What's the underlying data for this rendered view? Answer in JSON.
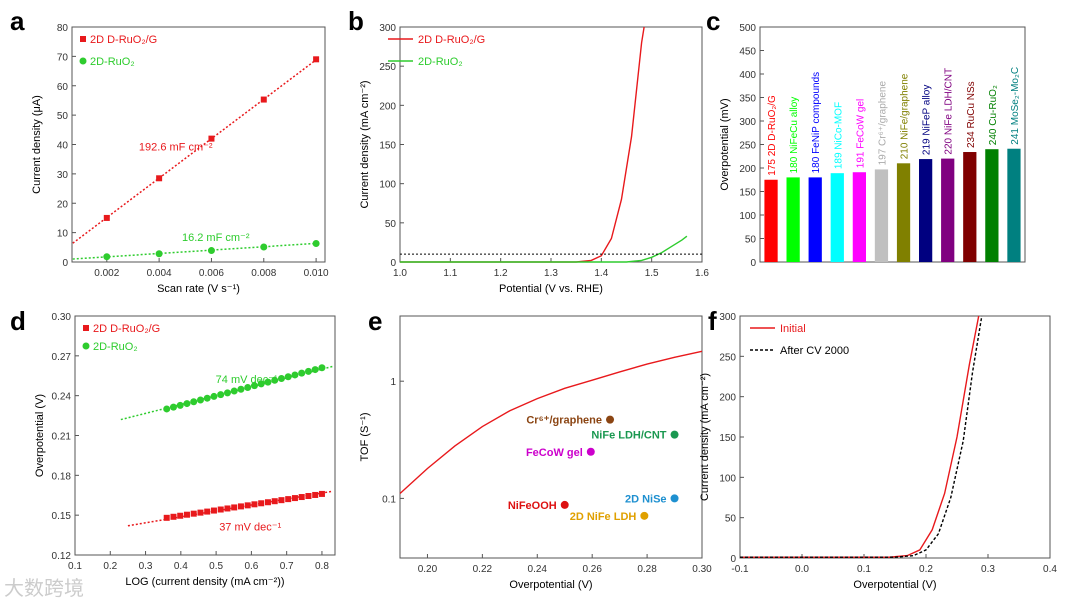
{
  "watermark": "大数跨境",
  "chart_data": [
    {
      "panel": "a",
      "type": "scatter",
      "xlabel": "Scan rate (V s⁻¹)",
      "ylabel": "Current density (μA)",
      "xlim": [
        0.00067,
        0.01034
      ],
      "ylim": [
        0,
        80
      ],
      "xticks": [
        0.002,
        0.004,
        0.006,
        0.008,
        0.01
      ],
      "xtick_labels": [
        "0.002",
        "0.004",
        "0.006",
        "0.008",
        "0.010"
      ],
      "yticks": [
        0,
        10,
        20,
        30,
        40,
        50,
        60,
        70,
        80
      ],
      "series": [
        {
          "name": "2D D-RuO₂/G",
          "color": "#e8191c",
          "marker": "square",
          "x": [
            0.002,
            0.004,
            0.006,
            0.008,
            0.01
          ],
          "y": [
            15,
            28.5,
            42,
            55.3,
            69
          ],
          "fit": [
            [
              0.0007,
              6.4
            ],
            [
              0.0101,
              69.5
            ]
          ],
          "annotation": "192.6 mF cm⁻²"
        },
        {
          "name": "2D-RuO₂",
          "color": "#2ecc2e",
          "marker": "circle",
          "x": [
            0.002,
            0.004,
            0.006,
            0.008,
            0.01
          ],
          "y": [
            1.8,
            2.8,
            3.9,
            5.1,
            6.3
          ],
          "fit": [
            [
              0.0007,
              1.0
            ],
            [
              0.0101,
              6.4
            ]
          ],
          "annotation": "16.2 mF cm⁻²"
        }
      ]
    },
    {
      "panel": "b",
      "type": "line",
      "xlabel": "Potential (V vs. RHE)",
      "ylabel": "Current density (mA cm⁻²)",
      "xlim": [
        1.0,
        1.6
      ],
      "ylim": [
        0,
        300
      ],
      "xticks": [
        1.0,
        1.1,
        1.2,
        1.3,
        1.4,
        1.5,
        1.6
      ],
      "xtick_labels": [
        "1.0",
        "1.1",
        "1.2",
        "1.3",
        "1.4",
        "1.5",
        "1.6"
      ],
      "yticks": [
        0,
        50,
        100,
        150,
        200,
        250,
        300
      ],
      "reference_line": 10,
      "series": [
        {
          "name": "2D D-RuO₂/G",
          "color": "#e8191c",
          "x": [
            1.0,
            1.35,
            1.38,
            1.4,
            1.42,
            1.44,
            1.46,
            1.47,
            1.48,
            1.485
          ],
          "y": [
            0,
            0,
            2,
            8,
            30,
            80,
            160,
            220,
            280,
            300
          ]
        },
        {
          "name": "2D-RuO₂",
          "color": "#2ecc2e",
          "x": [
            1.0,
            1.45,
            1.48,
            1.5,
            1.52,
            1.54,
            1.56,
            1.57
          ],
          "y": [
            0,
            0,
            2,
            6,
            12,
            20,
            28,
            33
          ]
        }
      ]
    },
    {
      "panel": "c",
      "type": "bar",
      "ylabel": "Overpotential (mV)",
      "ylim": [
        0,
        500
      ],
      "yticks": [
        0,
        50,
        100,
        150,
        200,
        250,
        300,
        350,
        400,
        450,
        500
      ],
      "categories": [
        "2D D-RuO₂/G",
        "NiFeCu alloy",
        "FeNiP compounds",
        "NiCo-MOF",
        "FeCoW gel",
        "Cr⁶⁺/graphene",
        "NiFe/graphene",
        "NiFeP alloy",
        "NiFe LDH/CNT",
        "RuCu NSs",
        "Cu-RuO₂",
        "MoSe₂-Mo₂C"
      ],
      "values": [
        175,
        180,
        180,
        189,
        191,
        197,
        210,
        219,
        220,
        234,
        240,
        241
      ],
      "colors": [
        "#ff0000",
        "#00ff00",
        "#0000ff",
        "#00ffff",
        "#ff00ff",
        "#c0c0c0",
        "#808000",
        "#000080",
        "#800080",
        "#800000",
        "#008000",
        "#008080"
      ]
    },
    {
      "panel": "d",
      "type": "scatter",
      "xlabel": "LOG (current density (mA cm⁻²))",
      "ylabel": "Overpotential (V)",
      "xlim": [
        0.1,
        0.837
      ],
      "ylim": [
        0.12,
        0.3
      ],
      "xticks": [
        0.1,
        0.2,
        0.3,
        0.4,
        0.5,
        0.6,
        0.7,
        0.8
      ],
      "xtick_labels": [
        "0.1",
        "0.2",
        "0.3",
        "0.4",
        "0.5",
        "0.6",
        "0.7",
        "0.8"
      ],
      "yticks": [
        0.12,
        0.15,
        0.18,
        0.21,
        0.24,
        0.27,
        0.3
      ],
      "ytick_labels": [
        "0.12",
        "0.15",
        "0.18",
        "0.21",
        "0.24",
        "0.27",
        "0.30"
      ],
      "series": [
        {
          "name": "2D D-RuO₂/G",
          "color": "#e8191c",
          "marker": "square",
          "xrange": [
            0.36,
            0.8
          ],
          "yrange": [
            0.148,
            0.166
          ],
          "count": 24,
          "fit": [
            [
              0.25,
              0.142
            ],
            [
              0.83,
              0.168
            ]
          ],
          "annotation": "37 mV dec⁻¹"
        },
        {
          "name": "2D-RuO₂",
          "color": "#2ecc2e",
          "marker": "circle",
          "xrange": [
            0.36,
            0.8
          ],
          "yrange": [
            0.23,
            0.261
          ],
          "count": 24,
          "fit": [
            [
              0.23,
              0.222
            ],
            [
              0.83,
              0.262
            ]
          ],
          "annotation": "74 mV dec⁻¹"
        }
      ]
    },
    {
      "panel": "e",
      "type": "line",
      "xlabel": "Overpotential (V)",
      "ylabel": "TOF (S⁻¹)",
      "xlim": [
        0.19,
        0.3
      ],
      "ylim": [
        0.031,
        3.6
      ],
      "yscale": "log",
      "xticks": [
        0.2,
        0.22,
        0.24,
        0.26,
        0.28,
        0.3
      ],
      "xtick_labels": [
        "0.20",
        "0.22",
        "0.24",
        "0.26",
        "0.28",
        "0.30"
      ],
      "yticks": [
        0.1,
        1
      ],
      "ytick_labels": [
        "0.1",
        "1"
      ],
      "series": [
        {
          "name": "2D D-RuO₂/G",
          "color": "#e8191c",
          "x": [
            0.19,
            0.2,
            0.21,
            0.22,
            0.23,
            0.24,
            0.25,
            0.26,
            0.27,
            0.28,
            0.29,
            0.3
          ],
          "y": [
            0.11,
            0.18,
            0.28,
            0.41,
            0.56,
            0.71,
            0.87,
            1.02,
            1.2,
            1.4,
            1.6,
            1.8
          ]
        }
      ],
      "points": [
        {
          "label": "Cr⁶⁺/graphene",
          "x": 0.2665,
          "y": 0.47,
          "color": "#8b4513"
        },
        {
          "label": "NiFe LDH/CNT",
          "x": 0.29,
          "y": 0.35,
          "color": "#1a9850"
        },
        {
          "label": "FeCoW gel",
          "x": 0.2595,
          "y": 0.25,
          "color": "#cc00cc"
        },
        {
          "label": "NiFeOOH",
          "x": 0.25,
          "y": 0.088,
          "color": "#dd1111"
        },
        {
          "label": "2D NiSe",
          "x": 0.29,
          "y": 0.1,
          "color": "#1e90d0"
        },
        {
          "label": "2D NiFe LDH",
          "x": 0.279,
          "y": 0.071,
          "color": "#e0a000"
        }
      ]
    },
    {
      "panel": "f",
      "type": "line",
      "xlabel": "Overpotential (V)",
      "ylabel": "Current density (mA cm⁻²)",
      "xlim": [
        -0.1,
        0.4
      ],
      "ylim": [
        0,
        300
      ],
      "xticks": [
        -0.1,
        0.0,
        0.1,
        0.2,
        0.3,
        0.4
      ],
      "xtick_labels": [
        "-0.1",
        "0.0",
        "0.1",
        "0.2",
        "0.3",
        "0.4"
      ],
      "yticks": [
        0,
        50,
        100,
        150,
        200,
        250,
        300
      ],
      "series": [
        {
          "name": "Initial",
          "color": "#e8191c",
          "dash": false,
          "x": [
            -0.1,
            0.14,
            0.17,
            0.19,
            0.21,
            0.23,
            0.25,
            0.27,
            0.285
          ],
          "y": [
            1,
            1,
            3,
            10,
            35,
            80,
            150,
            240,
            300
          ]
        },
        {
          "name": "After CV 2000",
          "color": "#000000",
          "dash": true,
          "x": [
            -0.1,
            0.15,
            0.18,
            0.2,
            0.22,
            0.24,
            0.26,
            0.275,
            0.29
          ],
          "y": [
            1,
            1,
            3,
            10,
            30,
            75,
            145,
            230,
            300
          ]
        }
      ]
    }
  ]
}
